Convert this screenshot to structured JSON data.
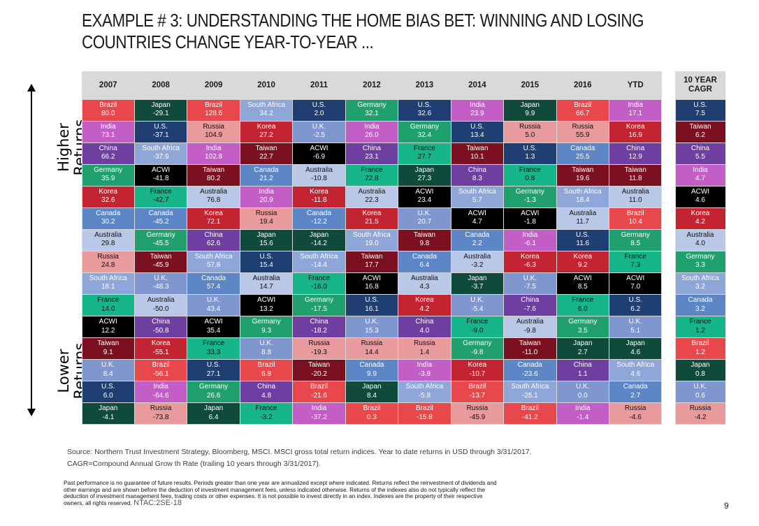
{
  "title": {
    "line1": "EXAMPLE # 3:  UNDERSTANDING THE HOME BIAS BET: WINNING AND LOSING",
    "line2": "COUNTRIES CHANGE YEAR-TO-YEAR ..."
  },
  "axis": {
    "higher_line1": "Higher",
    "higher_line2": "Returns",
    "lower_line1": "Lower",
    "lower_line2": "Returns"
  },
  "colors": {
    "Brazil": "#e8474b",
    "Japan": "#0f4a3a",
    "India": "#c45ec7",
    "U.S.": "#1f3f72",
    "China": "#6e3ea0",
    "South Africa": "#8fa6d8",
    "Russia": "#e99a9d",
    "Korea": "#c22432",
    "U.K.": "#7f96cf",
    "Germany": "#21a06f",
    "ACWI": "#000000",
    "Taiwan": "#7a1020",
    "France": "#16b58a",
    "Canada": "#5d86c6",
    "Australia": "#b9c8e6"
  },
  "text_colors": {
    "Brazil": "#ffffff",
    "Japan": "#ffffff",
    "India": "#ffffff",
    "U.S.": "#ffffff",
    "China": "#ffffff",
    "South Africa": "#ffffff",
    "Russia": "#111111",
    "Korea": "#ffffff",
    "U.K.": "#ffffff",
    "Germany": "#ffffff",
    "ACWI": "#ffffff",
    "Taiwan": "#ffffff",
    "France": "#111111",
    "Canada": "#ffffff",
    "Australia": "#111111"
  },
  "chart_data": {
    "type": "table",
    "title": "EXAMPLE # 3:  UNDERSTANDING THE HOME BIAS BET: WINNING AND LOSING COUNTRIES CHANGE YEAR-TO-YEAR ...",
    "columns": [
      "2007",
      "2008",
      "2009",
      "2010",
      "2011",
      "2012",
      "2013",
      "2014",
      "2015",
      "2016",
      "YTD"
    ],
    "rows": [
      [
        [
          "Brazil",
          "80.0"
        ],
        [
          "Japan",
          "-29.1"
        ],
        [
          "Brazil",
          "128.6"
        ],
        [
          "South Africa",
          "34.2"
        ],
        [
          "U.S.",
          "2.0"
        ],
        [
          "Germany",
          "32.1"
        ],
        [
          "U.S.",
          "32.6"
        ],
        [
          "India",
          "23.9"
        ],
        [
          "Japan",
          "9.9"
        ],
        [
          "Brazil",
          "66.7"
        ],
        [
          "India",
          "17.1"
        ]
      ],
      [
        [
          "India",
          "73.1"
        ],
        [
          "U.S.",
          "-37.1"
        ],
        [
          "Russia",
          "104.9"
        ],
        [
          "Korea",
          "27.2"
        ],
        [
          "U.K.",
          "-2.5"
        ],
        [
          "India",
          "26.0"
        ],
        [
          "Germany",
          "32.4"
        ],
        [
          "U.S.",
          "13.4"
        ],
        [
          "Russia",
          "5.0"
        ],
        [
          "Russia",
          "55.9"
        ],
        [
          "Korea",
          "16.9"
        ]
      ],
      [
        [
          "China",
          "66.2"
        ],
        [
          "South Africa",
          "-37.9"
        ],
        [
          "India",
          "102.8"
        ],
        [
          "Taiwan",
          "22.7"
        ],
        [
          "ACWI",
          "-6.9"
        ],
        [
          "China",
          "23.1"
        ],
        [
          "France",
          "27.7"
        ],
        [
          "Taiwan",
          "10.1"
        ],
        [
          "U.S.",
          "1.3"
        ],
        [
          "Canada",
          "25.5"
        ],
        [
          "China",
          "12.9"
        ]
      ],
      [
        [
          "Germany",
          "35.9"
        ],
        [
          "ACWI",
          "-41.8"
        ],
        [
          "Taiwan",
          "80.2"
        ],
        [
          "Canada",
          "21.2"
        ],
        [
          "Australia",
          "-10.8"
        ],
        [
          "France",
          "22.8"
        ],
        [
          "Japan",
          "27.3"
        ],
        [
          "China",
          "8.3"
        ],
        [
          "France",
          "0.8"
        ],
        [
          "Taiwan",
          "19.6"
        ],
        [
          "Taiwan",
          "11.8"
        ]
      ],
      [
        [
          "Korea",
          "32.6"
        ],
        [
          "France",
          "-42.7"
        ],
        [
          "Australia",
          "76.8"
        ],
        [
          "India",
          "20.9"
        ],
        [
          "Korea",
          "-11.8"
        ],
        [
          "Australia",
          "22.3"
        ],
        [
          "ACWI",
          "23.4"
        ],
        [
          "South Africa",
          "5.7"
        ],
        [
          "Germany",
          "-1.3"
        ],
        [
          "South Africa",
          "18.4"
        ],
        [
          "Australia",
          "11.0"
        ]
      ],
      [
        [
          "Canada",
          "30.2"
        ],
        [
          "Canada",
          "-45.2"
        ],
        [
          "Korea",
          "72.1"
        ],
        [
          "Russia",
          "19.4"
        ],
        [
          "Canada",
          "-12.2"
        ],
        [
          "Korea",
          "21.5"
        ],
        [
          "U.K.",
          "20.7"
        ],
        [
          "ACWI",
          "4.7"
        ],
        [
          "ACWI",
          "-1.8"
        ],
        [
          "Australia",
          "11.7"
        ],
        [
          "Brazil",
          "10.4"
        ]
      ],
      [
        [
          "Australia",
          "29.8"
        ],
        [
          "Germany",
          "-45.5"
        ],
        [
          "China",
          "62.6"
        ],
        [
          "Japan",
          "15.6"
        ],
        [
          "Japan",
          "-14.2"
        ],
        [
          "South Africa",
          "19.0"
        ],
        [
          "Taiwan",
          "9.8"
        ],
        [
          "Canada",
          "2.2"
        ],
        [
          "India",
          "-6.1"
        ],
        [
          "U.S.",
          "11.6"
        ],
        [
          "Germany",
          "8.5"
        ]
      ],
      [
        [
          "Russia",
          "24.8"
        ],
        [
          "Taiwan",
          "-45.9"
        ],
        [
          "South Africa",
          "57.8"
        ],
        [
          "U.S.",
          "15.4"
        ],
        [
          "South Africa",
          "-14.4"
        ],
        [
          "Taiwan",
          "17.7"
        ],
        [
          "Canada",
          "6.4"
        ],
        [
          "Australia",
          "-3.2"
        ],
        [
          "Korea",
          "-6.3"
        ],
        [
          "Korea",
          "9.2"
        ],
        [
          "France",
          "7.3"
        ]
      ],
      [
        [
          "South Africa",
          "18.1"
        ],
        [
          "U.K.",
          "-48.3"
        ],
        [
          "Canada",
          "57.4"
        ],
        [
          "Australia",
          "14.7"
        ],
        [
          "France",
          "-16.0"
        ],
        [
          "ACWI",
          "16.8"
        ],
        [
          "Australia",
          "4.3"
        ],
        [
          "Japan",
          "-3.7"
        ],
        [
          "U.K.",
          "-7.5"
        ],
        [
          "ACWI",
          "8.5"
        ],
        [
          "ACWI",
          "7.0"
        ]
      ],
      [
        [
          "France",
          "14.0"
        ],
        [
          "Australia",
          "-50.0"
        ],
        [
          "U.K.",
          "43.4"
        ],
        [
          "ACWI",
          "13.2"
        ],
        [
          "Germany",
          "-17.5"
        ],
        [
          "U.S.",
          "16.1"
        ],
        [
          "Korea",
          "4.2"
        ],
        [
          "U.K.",
          "-5.4"
        ],
        [
          "China",
          "-7.6"
        ],
        [
          "France",
          "6.0"
        ],
        [
          "U.S.",
          "6.2"
        ]
      ],
      [
        [
          "ACWI",
          "12.2"
        ],
        [
          "China",
          "-50.8"
        ],
        [
          "ACWI",
          "35.4"
        ],
        [
          "Germany",
          "9.3"
        ],
        [
          "China",
          "-18.2"
        ],
        [
          "U.K.",
          "15.3"
        ],
        [
          "China",
          "4.0"
        ],
        [
          "France",
          "-9.0"
        ],
        [
          "Australia",
          "-9.8"
        ],
        [
          "Germany",
          "3.5"
        ],
        [
          "U.K.",
          "5.1"
        ]
      ],
      [
        [
          "Taiwan",
          "9.1"
        ],
        [
          "Korea",
          "-55.1"
        ],
        [
          "France",
          "33.3"
        ],
        [
          "U.K.",
          "8.8"
        ],
        [
          "Russia",
          "-19.3"
        ],
        [
          "Russia",
          "14.4"
        ],
        [
          "Russia",
          "1.4"
        ],
        [
          "Germany",
          "-9.8"
        ],
        [
          "Taiwan",
          "-11.0"
        ],
        [
          "Japan",
          "2.7"
        ],
        [
          "Japan",
          "4.6"
        ]
      ],
      [
        [
          "U.K.",
          "8.4"
        ],
        [
          "Brazil",
          "-56.1"
        ],
        [
          "U.S.",
          "27.1"
        ],
        [
          "Brazil",
          "6.8"
        ],
        [
          "Taiwan",
          "-20.2"
        ],
        [
          "Canada",
          "9.9"
        ],
        [
          "India",
          "-3.8"
        ],
        [
          "Korea",
          "-10.7"
        ],
        [
          "Canada",
          "-23.6"
        ],
        [
          "China",
          "1.1"
        ],
        [
          "South Africa",
          "4.6"
        ]
      ],
      [
        [
          "U.S.",
          "6.0"
        ],
        [
          "India",
          "-64.6"
        ],
        [
          "Germany",
          "26.6"
        ],
        [
          "China",
          "4.8"
        ],
        [
          "Brazil",
          "-21.6"
        ],
        [
          "Japan",
          "8.4"
        ],
        [
          "South Africa",
          "-5.8"
        ],
        [
          "Brazil",
          "-13.7"
        ],
        [
          "South Africa",
          "-25.1"
        ],
        [
          "U.K.",
          "0.0"
        ],
        [
          "Canada",
          "2.7"
        ]
      ],
      [
        [
          "Japan",
          "-4.1"
        ],
        [
          "Russia",
          "-73.8"
        ],
        [
          "Japan",
          "6.4"
        ],
        [
          "France",
          "-3.2"
        ],
        [
          "India",
          "-37.2"
        ],
        [
          "Brazil",
          "0.3"
        ],
        [
          "Brazil",
          "-15.8"
        ],
        [
          "Russia",
          "-45.9"
        ],
        [
          "Brazil",
          "-41.2"
        ],
        [
          "India",
          "-1.4"
        ],
        [
          "Russia",
          "-4.6"
        ]
      ]
    ],
    "cagr_header_line1": "10 YEAR",
    "cagr_header_line2": "CAGR",
    "cagr": [
      [
        "U.S.",
        "7.5"
      ],
      [
        "Taiwan",
        "6.2"
      ],
      [
        "China",
        "5.5"
      ],
      [
        "India",
        "4.7"
      ],
      [
        "ACWI",
        "4.6"
      ],
      [
        "Korea",
        "4.2"
      ],
      [
        "Australia",
        "4.0"
      ],
      [
        "Germany",
        "3.3"
      ],
      [
        "South Africa",
        "3.2"
      ],
      [
        "Canada",
        "3.2"
      ],
      [
        "France",
        "1.2"
      ],
      [
        "Brazil",
        "1.2"
      ],
      [
        "Japan",
        "0.8"
      ],
      [
        "U.K.",
        "0.6"
      ],
      [
        "Russia",
        "-4.2"
      ]
    ]
  },
  "source_line1": "Source: Northern Trust Investment Strategy, Bloomberg, MSCI. MSCI gross total return indices. Year to date returns in USD through 3/31/2017.",
  "source_line2": "CAGR=Compound Annual Grow th Rate (trailing 10 years through 3/31/2017).",
  "disclaimer": "Past performance is no guarantee of future results. Periods greater than one year are annualized except where indicated. Returns reflect the reinvestment of dividends and other earnings and are shown before the deduction of investment management fees, unless indicated otherwise. Returns of the indexes also do not typically reflect the deduction of investment management fees, trading costs or other expenses. It is not possible to invest directly in an index. Indexes are the property of their respective owners, all rights reserved.",
  "code": "NTAC:2SE-18",
  "page_number": "9"
}
